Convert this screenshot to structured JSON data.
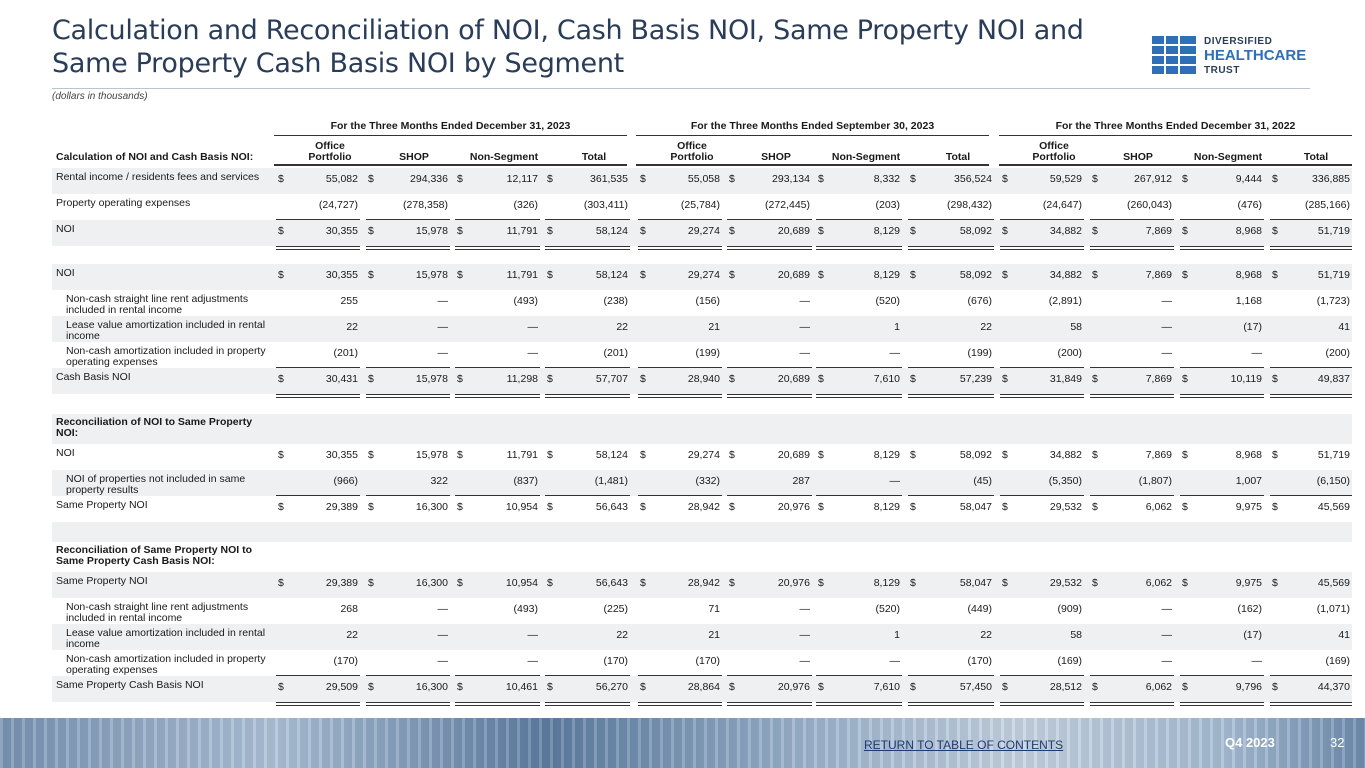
{
  "title": "Calculation and Reconciliation of NOI, Cash Basis NOI, Same Property NOI and Same Property Cash Basis NOI by Segment",
  "subtitle": "(dollars in thousands)",
  "logo": {
    "line1": "DIVERSIFIED",
    "line2": "HEALTHCARE",
    "line3": "TRUST"
  },
  "periods": [
    "For the Three Months Ended December 31, 2023",
    "For the Three Months Ended September 30, 2023",
    "For the Three Months Ended December 31, 2022"
  ],
  "row_header_label": "Calculation of NOI and Cash Basis NOI:",
  "column_headers": [
    "Office Portfolio",
    "SHOP",
    "Non-Segment",
    "Total"
  ],
  "section_headers": {
    "s2": "Reconciliation of NOI to Same Property NOI:",
    "s3": "Reconciliation of Same Property NOI to Same Property Cash Basis NOI:"
  },
  "rows": [
    {
      "label": "Rental income / residents fees and services",
      "values": [
        "55,082",
        "294,336",
        "12,117",
        "361,535",
        "55,058",
        "293,134",
        "8,332",
        "356,524",
        "59,529",
        "267,912",
        "9,444",
        "336,885"
      ],
      "dollar": true
    },
    {
      "label": "Property operating expenses",
      "values": [
        "(24,727)",
        "(278,358)",
        "(326)",
        "(303,411)",
        "(25,784)",
        "(272,445)",
        "(203)",
        "(298,432)",
        "(24,647)",
        "(260,043)",
        "(476)",
        "(285,166)"
      ]
    },
    {
      "label": "NOI",
      "values": [
        "30,355",
        "15,978",
        "11,791",
        "58,124",
        "29,274",
        "20,689",
        "8,129",
        "58,092",
        "34,882",
        "7,869",
        "8,968",
        "51,719"
      ],
      "dollar": true
    },
    {
      "label": "NOI",
      "values": [
        "30,355",
        "15,978",
        "11,791",
        "58,124",
        "29,274",
        "20,689",
        "8,129",
        "58,092",
        "34,882",
        "7,869",
        "8,968",
        "51,719"
      ],
      "dollar": true
    },
    {
      "label": "Non-cash straight line rent adjustments included in rental income",
      "values": [
        "255",
        "—",
        "(493)",
        "(238)",
        "(156)",
        "—",
        "(520)",
        "(676)",
        "(2,891)",
        "—",
        "1,168",
        "(1,723)"
      ]
    },
    {
      "label": "Lease value amortization included in rental income",
      "values": [
        "22",
        "—",
        "—",
        "22",
        "21",
        "—",
        "1",
        "22",
        "58",
        "—",
        "(17)",
        "41"
      ]
    },
    {
      "label": "Non-cash amortization included in property operating expenses",
      "values": [
        "(201)",
        "—",
        "—",
        "(201)",
        "(199)",
        "—",
        "—",
        "(199)",
        "(200)",
        "—",
        "—",
        "(200)"
      ]
    },
    {
      "label": "Cash Basis NOI",
      "values": [
        "30,431",
        "15,978",
        "11,298",
        "57,707",
        "28,940",
        "20,689",
        "7,610",
        "57,239",
        "31,849",
        "7,869",
        "10,119",
        "49,837"
      ],
      "dollar": true
    },
    {
      "label": "NOI",
      "values": [
        "30,355",
        "15,978",
        "11,791",
        "58,124",
        "29,274",
        "20,689",
        "8,129",
        "58,092",
        "34,882",
        "7,869",
        "8,968",
        "51,719"
      ],
      "dollar": true
    },
    {
      "label": "NOI of properties not included in same property results",
      "values": [
        "(966)",
        "322",
        "(837)",
        "(1,481)",
        "(332)",
        "287",
        "—",
        "(45)",
        "(5,350)",
        "(1,807)",
        "1,007",
        "(6,150)"
      ]
    },
    {
      "label": "Same Property NOI",
      "values": [
        "29,389",
        "16,300",
        "10,954",
        "56,643",
        "28,942",
        "20,976",
        "8,129",
        "58,047",
        "29,532",
        "6,062",
        "9,975",
        "45,569"
      ],
      "dollar": true
    },
    {
      "label": "Same Property NOI",
      "values": [
        "29,389",
        "16,300",
        "10,954",
        "56,643",
        "28,942",
        "20,976",
        "8,129",
        "58,047",
        "29,532",
        "6,062",
        "9,975",
        "45,569"
      ],
      "dollar": true
    },
    {
      "label": "Non-cash straight line rent adjustments included in rental income",
      "values": [
        "268",
        "—",
        "(493)",
        "(225)",
        "71",
        "—",
        "(520)",
        "(449)",
        "(909)",
        "—",
        "(162)",
        "(1,071)"
      ]
    },
    {
      "label": "Lease value amortization included in rental income",
      "values": [
        "22",
        "—",
        "—",
        "22",
        "21",
        "—",
        "1",
        "22",
        "58",
        "—",
        "(17)",
        "41"
      ]
    },
    {
      "label": "Non-cash amortization included in property operating expenses",
      "values": [
        "(170)",
        "—",
        "—",
        "(170)",
        "(170)",
        "—",
        "—",
        "(170)",
        "(169)",
        "—",
        "—",
        "(169)"
      ]
    },
    {
      "label": "Same Property Cash Basis NOI",
      "values": [
        "29,509",
        "16,300",
        "10,461",
        "56,270",
        "28,864",
        "20,976",
        "7,610",
        "57,450",
        "28,512",
        "6,062",
        "9,796",
        "44,370"
      ],
      "dollar": true
    }
  ],
  "footer": {
    "link": "RETURN TO TABLE OF CONTENTS",
    "quarter": "Q4 2023",
    "page": "32"
  }
}
